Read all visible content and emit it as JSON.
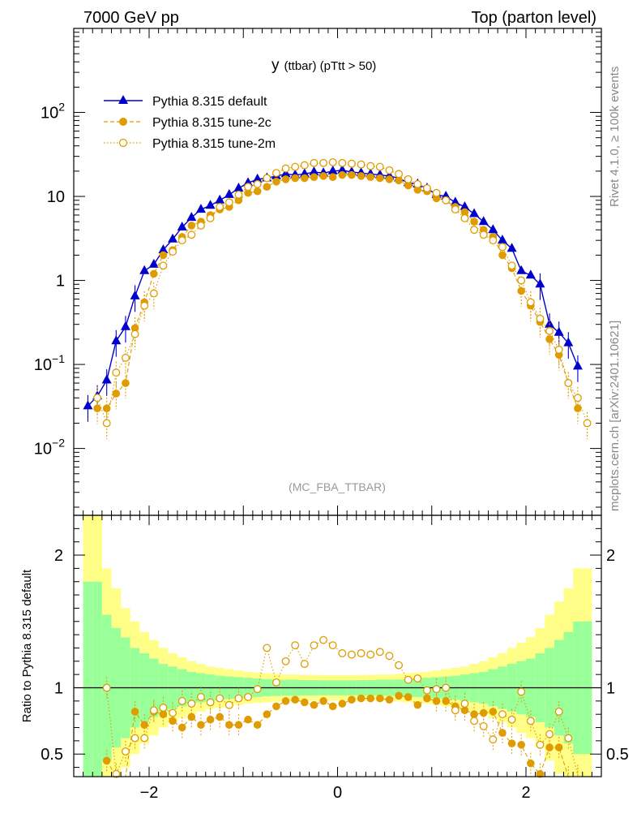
{
  "header": {
    "left": "7000 GeV pp",
    "right": "Top (parton level)"
  },
  "side_labels": {
    "rivet": "Rivet 4.1.0, ≥ 100k events",
    "mcplots": "mcplots.cern.ch [arXiv:2401.10621]"
  },
  "chart_data": [
    {
      "type": "line",
      "panel": "main",
      "title": "y",
      "title_small": "(ttbar)  (pTtt > 50)",
      "analysis_label": "(MC_FBA_TTBAR)",
      "xlabel": "",
      "ylabel": "",
      "yscale": "log",
      "xlim": [
        -2.8,
        2.8
      ],
      "ylim": [
        0.0016,
        1000
      ],
      "x_ticks": [
        "−2",
        "0",
        "2"
      ],
      "y_ticks": [
        {
          "base": "10",
          "exp": "−2",
          "value": 0.01
        },
        {
          "base": "10",
          "exp": "−1",
          "value": 0.1
        },
        {
          "base": "1",
          "exp": "",
          "value": 1
        },
        {
          "base": "10",
          "exp": "",
          "value": 10
        },
        {
          "base": "10",
          "exp": "2",
          "value": 100
        }
      ],
      "x": [
        -2.65,
        -2.55,
        -2.45,
        -2.35,
        -2.25,
        -2.15,
        -2.05,
        -1.95,
        -1.85,
        -1.75,
        -1.65,
        -1.55,
        -1.45,
        -1.35,
        -1.25,
        -1.15,
        -1.05,
        -0.95,
        -0.85,
        -0.75,
        -0.65,
        -0.55,
        -0.45,
        -0.35,
        -0.25,
        -0.15,
        -0.05,
        0.05,
        0.15,
        0.25,
        0.35,
        0.45,
        0.55,
        0.65,
        0.75,
        0.85,
        0.95,
        1.05,
        1.15,
        1.25,
        1.35,
        1.45,
        1.55,
        1.65,
        1.75,
        1.85,
        1.95,
        2.05,
        2.15,
        2.25,
        2.35,
        2.45,
        2.55,
        2.65
      ],
      "series": [
        {
          "name": "Pythia 8.315 default",
          "color": "#0000cc",
          "marker": "triangle",
          "line": "solid",
          "values": [
            0.032,
            0.042,
            0.065,
            0.19,
            0.28,
            0.65,
            1.3,
            1.55,
            2.3,
            3.1,
            4.3,
            5.6,
            7.0,
            7.8,
            9.0,
            10.5,
            12.5,
            14.5,
            16.0,
            16.5,
            17.5,
            18.5,
            18.0,
            18.5,
            19.5,
            19.0,
            20.0,
            20.5,
            19.5,
            19.0,
            18.5,
            18.0,
            17.5,
            16.5,
            14.5,
            14.0,
            12.5,
            10.5,
            10.0,
            8.5,
            7.5,
            6.2,
            5.0,
            4.0,
            3.0,
            2.4,
            1.3,
            1.15,
            0.9,
            0.3,
            0.24,
            0.18,
            0.095,
            null
          ]
        },
        {
          "name": "Pythia 8.315 tune-2c",
          "color": "#e09b00",
          "marker": "filled-circle",
          "line": "dashed",
          "values": [
            null,
            0.03,
            0.03,
            0.045,
            0.06,
            0.27,
            0.55,
            1.2,
            2.0,
            2.3,
            3.3,
            4.5,
            5.0,
            6.0,
            7.0,
            7.5,
            9.0,
            11.0,
            11.5,
            13.0,
            15.0,
            16.0,
            16.5,
            16.5,
            17.0,
            17.5,
            17.0,
            18.0,
            18.0,
            17.5,
            17.0,
            16.5,
            16.0,
            15.5,
            13.5,
            12.0,
            11.5,
            9.5,
            9.0,
            7.5,
            6.5,
            5.0,
            4.0,
            3.3,
            2.0,
            1.4,
            0.75,
            0.5,
            0.32,
            0.2,
            0.13,
            0.06,
            0.03,
            null
          ]
        },
        {
          "name": "Pythia 8.315 tune-2m",
          "color": "#e09b00",
          "marker": "open-circle",
          "line": "dotted",
          "values": [
            null,
            0.04,
            0.02,
            0.08,
            0.12,
            0.23,
            0.5,
            0.7,
            1.5,
            2.2,
            3.0,
            3.5,
            4.5,
            5.5,
            7.5,
            8.5,
            10.5,
            13.0,
            14.0,
            16.5,
            19.0,
            21.5,
            22.5,
            23.5,
            25.0,
            25.0,
            25.5,
            25.0,
            24.5,
            24.0,
            23.0,
            22.5,
            20.5,
            18.5,
            16.0,
            14.0,
            12.5,
            11.0,
            9.0,
            7.0,
            5.5,
            4.0,
            3.5,
            3.0,
            2.5,
            1.5,
            1.0,
            0.55,
            0.35,
            0.25,
            0.15,
            0.06,
            0.04,
            0.02
          ]
        }
      ]
    },
    {
      "type": "line",
      "panel": "ratio",
      "ylabel": "Ratio to Pythia 8.315 default",
      "xlim": [
        -2.8,
        2.8
      ],
      "ylim": [
        0.33,
        2.3
      ],
      "y_ticks": [
        "0.5",
        "1",
        "2"
      ],
      "x_ticks": [
        "−2",
        "0",
        "2"
      ],
      "bands": {
        "inner_color": "#99ff99",
        "outer_color": "#ffff88",
        "x": [
          -2.65,
          -2.55,
          -2.45,
          -2.35,
          -2.25,
          -2.15,
          -2.05,
          -1.95,
          -1.85,
          -1.75,
          -1.65,
          -1.55,
          -1.45,
          -1.35,
          -1.25,
          -1.15,
          -1.05,
          -0.95,
          -0.85,
          -0.75,
          -0.65,
          -0.55,
          -0.45,
          -0.35,
          -0.25,
          -0.15,
          -0.05,
          0.05,
          0.15,
          0.25,
          0.35,
          0.45,
          0.55,
          0.65,
          0.75,
          0.85,
          0.95,
          1.05,
          1.15,
          1.25,
          1.35,
          1.45,
          1.55,
          1.65,
          1.75,
          1.85,
          1.95,
          2.05,
          2.15,
          2.25,
          2.35,
          2.45,
          2.55,
          2.65
        ],
        "inner_halfwidth": [
          0.8,
          0.8,
          0.55,
          0.45,
          0.38,
          0.3,
          0.26,
          0.22,
          0.18,
          0.16,
          0.14,
          0.12,
          0.11,
          0.1,
          0.09,
          0.085,
          0.08,
          0.075,
          0.07,
          0.065,
          0.062,
          0.06,
          0.06,
          0.058,
          0.058,
          0.057,
          0.057,
          0.057,
          0.057,
          0.058,
          0.058,
          0.06,
          0.06,
          0.062,
          0.065,
          0.07,
          0.075,
          0.08,
          0.085,
          0.09,
          0.1,
          0.11,
          0.12,
          0.14,
          0.16,
          0.18,
          0.2,
          0.22,
          0.26,
          0.3,
          0.36,
          0.42,
          0.5,
          0.5
        ],
        "outer_halfwidth": [
          1.3,
          1.3,
          0.9,
          0.75,
          0.6,
          0.5,
          0.42,
          0.36,
          0.3,
          0.26,
          0.23,
          0.2,
          0.18,
          0.16,
          0.15,
          0.14,
          0.13,
          0.12,
          0.115,
          0.11,
          0.105,
          0.1,
          0.1,
          0.098,
          0.097,
          0.096,
          0.096,
          0.096,
          0.096,
          0.097,
          0.098,
          0.1,
          0.1,
          0.105,
          0.11,
          0.115,
          0.12,
          0.13,
          0.14,
          0.15,
          0.16,
          0.18,
          0.2,
          0.23,
          0.26,
          0.3,
          0.34,
          0.38,
          0.45,
          0.55,
          0.65,
          0.75,
          0.9,
          0.9
        ]
      },
      "series": [
        {
          "name": "Pythia 8.315 tune-2c",
          "color": "#e09b00",
          "marker": "filled-circle",
          "line": "dashed",
          "values": [
            null,
            null,
            0.45,
            0.25,
            0.21,
            0.82,
            0.72,
            0.82,
            0.8,
            0.75,
            0.7,
            0.78,
            0.72,
            0.76,
            0.78,
            0.72,
            0.72,
            0.76,
            0.72,
            0.8,
            0.86,
            0.9,
            0.91,
            0.89,
            0.87,
            0.9,
            0.86,
            0.88,
            0.91,
            0.92,
            0.92,
            0.92,
            0.91,
            0.94,
            0.93,
            0.87,
            0.92,
            0.9,
            0.9,
            0.86,
            0.83,
            0.8,
            0.81,
            0.82,
            0.66,
            0.58,
            0.57,
            0.43,
            0.35,
            0.55,
            0.55,
            0.33,
            0.32,
            null
          ]
        },
        {
          "name": "Pythia 8.315 tune-2m",
          "color": "#e09b00",
          "marker": "open-circle",
          "line": "dotted",
          "values": [
            null,
            null,
            1.0,
            0.35,
            0.52,
            0.62,
            0.62,
            0.83,
            0.85,
            0.81,
            0.9,
            0.88,
            0.93,
            0.89,
            0.92,
            0.87,
            0.92,
            0.93,
            0.99,
            1.3,
            1.04,
            1.2,
            1.32,
            1.18,
            1.32,
            1.36,
            1.32,
            1.26,
            1.25,
            1.26,
            1.25,
            1.27,
            1.24,
            1.17,
            1.06,
            1.07,
            0.98,
            0.99,
            1.0,
            0.83,
            0.88,
            0.75,
            0.71,
            0.61,
            0.8,
            0.76,
            0.97,
            0.75,
            0.57,
            0.65,
            0.82,
            0.62,
            0.34,
            null
          ]
        }
      ]
    }
  ]
}
